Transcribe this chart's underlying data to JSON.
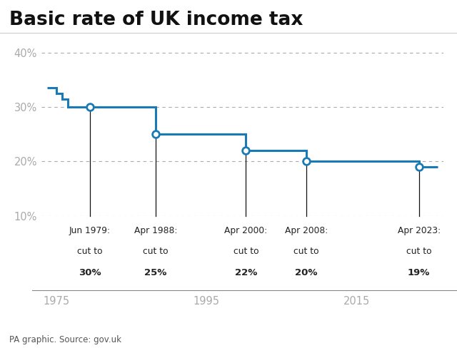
{
  "title": "Basic rate of UK income tax",
  "source": "PA graphic. Source: gov.uk",
  "line_color": "#1a7ab5",
  "annotation_line_color": "#111111",
  "background_color": "#ffffff",
  "grid_color": "#aaaaaa",
  "title_fontsize": 19,
  "axis_label_color": "#aaaaaa",
  "annotation_text_color": "#222222",
  "xlim": [
    1973.0,
    2026.5
  ],
  "ylim": [
    10,
    42
  ],
  "yticks": [
    10,
    20,
    30,
    40
  ],
  "xticks": [
    1975,
    1995,
    2015
  ],
  "cut_points": [
    {
      "year": 1979.5,
      "rate": 30,
      "label_top": "Jun 1979:",
      "label_mid": "cut to",
      "label_bot": "30%"
    },
    {
      "year": 1988.25,
      "rate": 25,
      "label_top": "Apr 1988:",
      "label_mid": "cut to",
      "label_bot": "25%"
    },
    {
      "year": 2000.25,
      "rate": 22,
      "label_top": "Apr 2000:",
      "label_mid": "cut to",
      "label_bot": "22%"
    },
    {
      "year": 2008.25,
      "rate": 20,
      "label_top": "Apr 2008:",
      "label_mid": "cut to",
      "label_bot": "20%"
    },
    {
      "year": 2023.25,
      "rate": 19,
      "label_top": "Apr 2023:",
      "label_mid": "cut to",
      "label_bot": "19%"
    }
  ],
  "pre_x": [
    1973.8,
    1975.0,
    1975.0,
    1975.8,
    1975.8,
    1976.6,
    1976.6,
    1979.5
  ],
  "pre_y": [
    33.5,
    33.5,
    32.5,
    32.5,
    31.5,
    31.5,
    30.0,
    30.0
  ],
  "main_x": [
    1979.5,
    1988.25,
    1988.25,
    2000.25,
    2000.25,
    2008.25,
    2008.25,
    2023.25,
    2023.25,
    2025.8
  ],
  "main_y": [
    30,
    30,
    25,
    25,
    22,
    22,
    20,
    20,
    19,
    19
  ]
}
